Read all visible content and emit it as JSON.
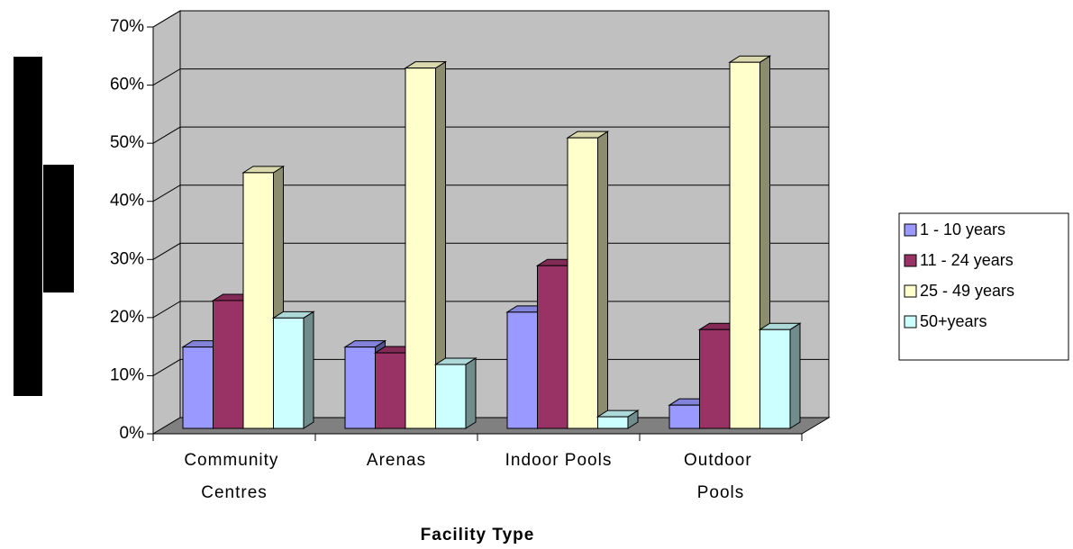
{
  "chart_data": {
    "type": "bar3d",
    "x_label": "Facility Type",
    "categories": [
      "Community Centres",
      "Arenas",
      "Indoor Pools",
      "Outdoor Pools"
    ],
    "series": [
      {
        "name": "1 - 10 years",
        "color": "#9999ff",
        "values": [
          14,
          14,
          20,
          4
        ]
      },
      {
        "name": "11 - 24 years",
        "color": "#993366",
        "values": [
          22,
          13,
          28,
          17
        ]
      },
      {
        "name": "25 - 49 years",
        "color": "#ffffcc",
        "values": [
          44,
          62,
          50,
          63
        ]
      },
      {
        "name": "50+years",
        "color": "#ccffff",
        "values": [
          19,
          11,
          2,
          17
        ]
      }
    ],
    "ylim": [
      0,
      70
    ],
    "yticks": [
      {
        "value": 0,
        "label": "0%"
      },
      {
        "value": 10,
        "label": "10%"
      },
      {
        "value": 20,
        "label": "20%"
      },
      {
        "value": 30,
        "label": "30%"
      },
      {
        "value": 40,
        "label": "40%"
      },
      {
        "value": 50,
        "label": "50%"
      },
      {
        "value": 60,
        "label": "60%"
      },
      {
        "value": 70,
        "label": "70%"
      }
    ],
    "grid": true,
    "legend": "right"
  }
}
